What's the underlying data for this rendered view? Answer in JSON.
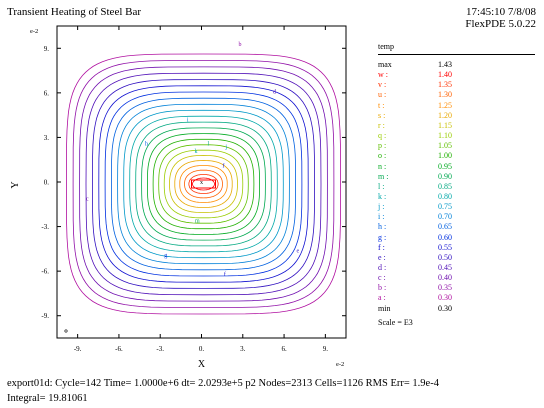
{
  "header": {
    "title": "Transient Heating of Steel Bar",
    "time": "17:45:10 7/8/08",
    "version": "FlexPDE 5.0.22"
  },
  "chart_data": {
    "type": "contour",
    "xlabel": "X",
    "ylabel": "Y",
    "x_exponent": "e-2",
    "y_exponent": "e-2",
    "xlim": [
      -10.5,
      10.5
    ],
    "ylim": [
      -10.5,
      10.5
    ],
    "x_ticks": [
      -9,
      -6,
      -3,
      0,
      3,
      6,
      9
    ],
    "y_ticks": [
      9,
      6,
      3,
      0,
      -3,
      -6,
      -9
    ],
    "x_tick_labels": [
      "-9.",
      "-6.",
      "-3.",
      "0.",
      "3.",
      "6.",
      "9."
    ],
    "y_tick_labels": [
      "9.",
      "6.",
      "3.",
      "0.",
      "-3.",
      "-6.",
      "-9."
    ],
    "legend_title": "temp",
    "scale_note": "Scale = E3",
    "max": "1.43",
    "min": "0.30",
    "levels": [
      {
        "label": "w",
        "value": "1.40",
        "color": "#ff0000"
      },
      {
        "label": "v",
        "value": "1.35",
        "color": "#ff3000"
      },
      {
        "label": "u",
        "value": "1.30",
        "color": "#ff6000"
      },
      {
        "label": "t",
        "value": "1.25",
        "color": "#ff8c00"
      },
      {
        "label": "s",
        "value": "1.20",
        "color": "#e8a800"
      },
      {
        "label": "r",
        "value": "1.15",
        "color": "#c8c000"
      },
      {
        "label": "q",
        "value": "1.10",
        "color": "#9acd00"
      },
      {
        "label": "p",
        "value": "1.05",
        "color": "#60c000"
      },
      {
        "label": "o",
        "value": "1.00",
        "color": "#20b000"
      },
      {
        "label": "n",
        "value": "0.95",
        "color": "#00aa20"
      },
      {
        "label": "m",
        "value": "0.90",
        "color": "#00a850"
      },
      {
        "label": "l",
        "value": "0.85",
        "color": "#00a880"
      },
      {
        "label": "k",
        "value": "0.80",
        "color": "#00a8a8"
      },
      {
        "label": "j",
        "value": "0.75",
        "color": "#0098c8"
      },
      {
        "label": "i",
        "value": "0.70",
        "color": "#0080d8"
      },
      {
        "label": "h",
        "value": "0.65",
        "color": "#0060e0"
      },
      {
        "label": "g",
        "value": "0.60",
        "color": "#0030e0"
      },
      {
        "label": "f",
        "value": "0.55",
        "color": "#1010d0"
      },
      {
        "label": "e",
        "value": "0.50",
        "color": "#3010c0"
      },
      {
        "label": "d",
        "value": "0.45",
        "color": "#5010b8"
      },
      {
        "label": "c",
        "value": "0.40",
        "color": "#7010b0"
      },
      {
        "label": "b",
        "value": "0.35",
        "color": "#9010a8"
      },
      {
        "label": "a",
        "value": "0.30",
        "color": "#b010a0"
      }
    ],
    "contour_labels": [
      {
        "label": "b",
        "x": 2.8,
        "y": 9.3
      },
      {
        "label": "d",
        "x": 5.3,
        "y": 6.1
      },
      {
        "label": "i",
        "x": -1.0,
        "y": 4.2
      },
      {
        "label": "h",
        "x": -4.0,
        "y": 2.6
      },
      {
        "label": "j",
        "x": 1.8,
        "y": 2.4
      },
      {
        "label": "k",
        "x": -0.4,
        "y": 2.1
      },
      {
        "label": "l",
        "x": 0.5,
        "y": 2.6
      },
      {
        "label": "f",
        "x": 1.6,
        "y": 1.1
      },
      {
        "label": "c",
        "x": -8.3,
        "y": -1.1
      },
      {
        "label": "e",
        "x": 7.0,
        "y": -4.6
      },
      {
        "label": "g",
        "x": -2.6,
        "y": -4.9
      },
      {
        "label": "f",
        "x": 1.7,
        "y": -6.2
      },
      {
        "label": "m",
        "x": -0.3,
        "y": -2.6
      },
      {
        "label": "x",
        "x": 0.0,
        "y": 0.0
      }
    ]
  },
  "legend": {
    "max_label": "max",
    "min_label": "min"
  },
  "footer": {
    "line1": "export01d:  Cycle=142  Time= 1.0000e+6  dt= 2.0293e+5  p2  Nodes=2313  Cells=1126  RMS Err= 1.9e-4",
    "line2": "Integral=  19.81061"
  }
}
